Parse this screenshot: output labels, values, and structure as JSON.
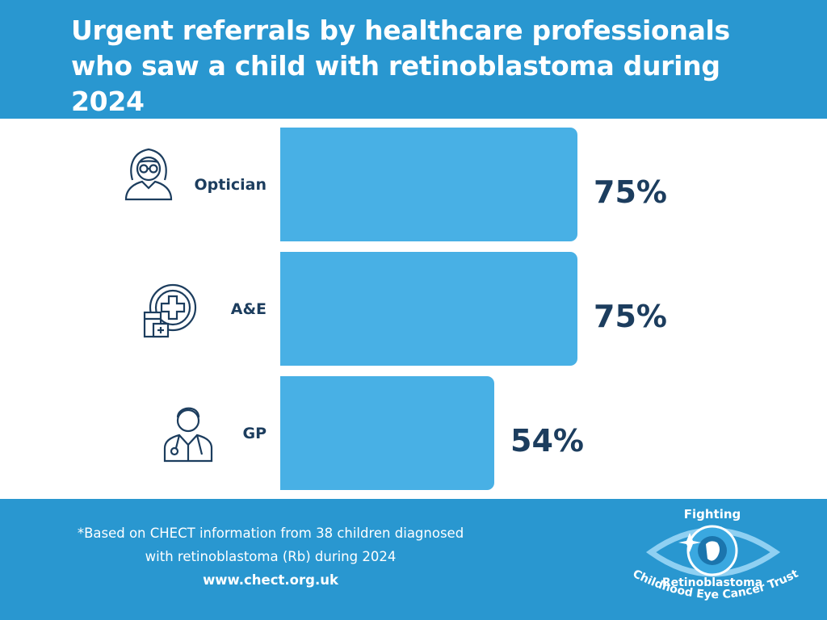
{
  "header": {
    "title": "Urgent referrals by healthcare professionals who saw a child with retinoblastoma during 2024"
  },
  "chart_data": {
    "type": "bar",
    "orientation": "horizontal",
    "categories": [
      "Optician",
      "A&E",
      "GP"
    ],
    "values": [
      75,
      75,
      54
    ],
    "value_labels": [
      "75%",
      "75%",
      "54%"
    ],
    "unit": "%",
    "xlim": [
      0,
      100
    ],
    "title": "Urgent referrals by healthcare professionals who saw a child with retinoblastoma during 2024",
    "xlabel": "",
    "ylabel": ""
  },
  "icons": [
    "optician-icon",
    "hospital-icon",
    "doctor-icon"
  ],
  "footer": {
    "note_line1": "*Based on CHECT information from 38 children diagnosed",
    "note_line2": "with retinoblastoma (Rb) during 2024",
    "url": "www.chect.org.uk"
  },
  "logo": {
    "top_text": "Fighting",
    "middle_text": "Retinoblastoma",
    "bottom_text": "Childhood Eye Cancer Trust"
  },
  "colors": {
    "brand_blue": "#2997d0",
    "bar_blue": "#48b0e5",
    "navy": "#1c3d5e",
    "white": "#ffffff"
  }
}
